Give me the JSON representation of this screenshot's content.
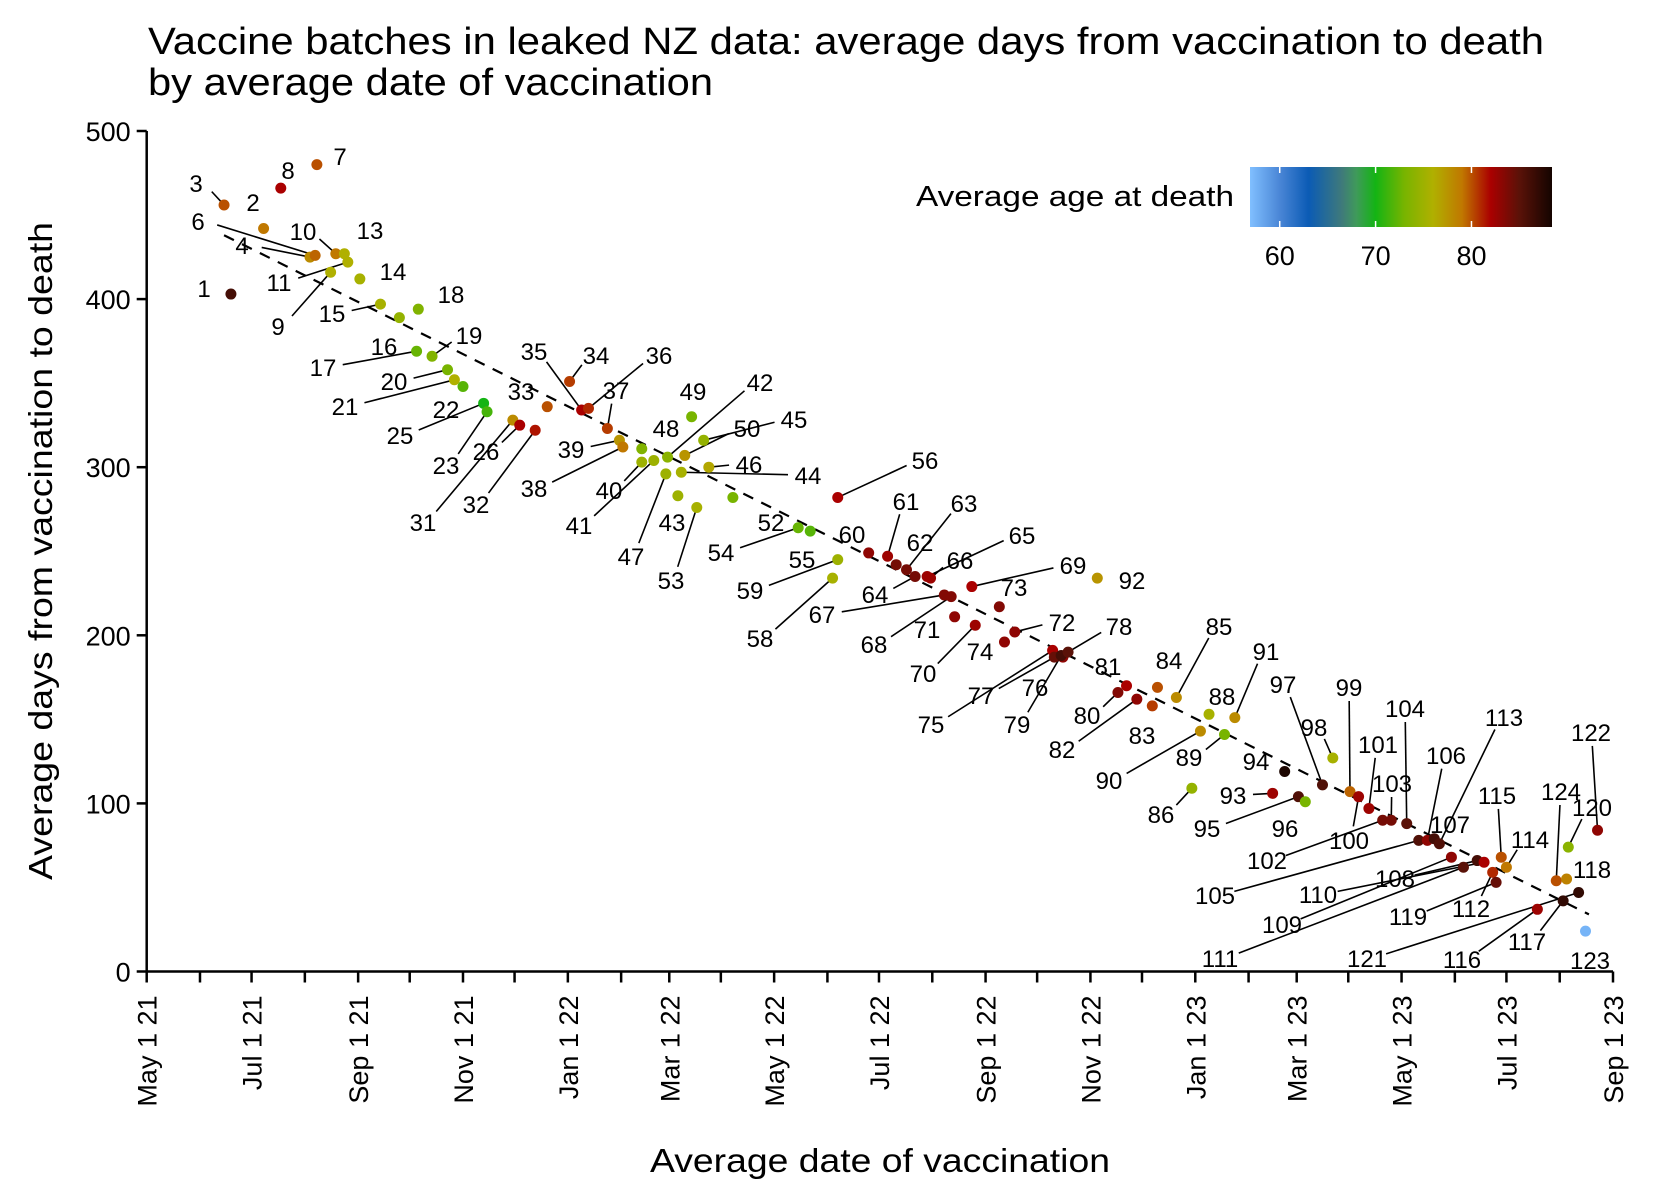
{
  "chart_data": {
    "type": "scatter",
    "title": "Vaccine batches in leaked NZ data: average days from vaccination to death",
    "subtitle": "by average date of vaccination",
    "xlabel": "Average date of vaccination",
    "ylabel": "Average days from vaccination to death",
    "x_units": "days since May 1 2021",
    "xlim": [
      0,
      853
    ],
    "ylim": [
      0,
      500
    ],
    "grid": false,
    "x_ticks": [
      {
        "day": 0,
        "label": "May 1 21"
      },
      {
        "day": 61,
        "label": "Jul 1 21"
      },
      {
        "day": 123,
        "label": "Sep 1 21"
      },
      {
        "day": 184,
        "label": "Nov 1 21"
      },
      {
        "day": 245,
        "label": "Jan 1 22"
      },
      {
        "day": 304,
        "label": "Mar 1 22"
      },
      {
        "day": 365,
        "label": "May 1 22"
      },
      {
        "day": 426,
        "label": "Jul 1 22"
      },
      {
        "day": 488,
        "label": "Sep 1 22"
      },
      {
        "day": 549,
        "label": "Nov 1 22"
      },
      {
        "day": 610,
        "label": "Jan 1 23"
      },
      {
        "day": 669,
        "label": "Mar 1 23"
      },
      {
        "day": 730,
        "label": "May 1 23"
      },
      {
        "day": 791,
        "label": "Jul 1 23"
      },
      {
        "day": 853,
        "label": "Sep 1 23"
      }
    ],
    "x_minor_ticks": [
      31,
      92,
      153,
      214,
      276,
      334,
      396,
      457,
      518,
      579,
      641,
      699,
      761,
      822
    ],
    "y_ticks": [
      {
        "value": 0,
        "label": "0"
      },
      {
        "value": 100,
        "label": "100"
      },
      {
        "value": 200,
        "label": "200"
      },
      {
        "value": 300,
        "label": "300"
      },
      {
        "value": 400,
        "label": "400"
      },
      {
        "value": 500,
        "label": "500"
      }
    ],
    "trend_line": {
      "style": "dashed",
      "from": [
        45,
        438
      ],
      "to": [
        839,
        34
      ]
    },
    "color_scale": {
      "title": "Average age at death",
      "range": [
        56.9,
        88.4
      ],
      "ticks": [
        {
          "value": 60,
          "label": "60"
        },
        {
          "value": 70,
          "label": "70"
        },
        {
          "value": 80,
          "label": "80"
        }
      ],
      "stops": [
        {
          "age": 56.9,
          "color": "#80bfff"
        },
        {
          "age": 60,
          "color": "#4a86d6"
        },
        {
          "age": 63,
          "color": "#0b5bb5"
        },
        {
          "age": 66.5,
          "color": "#3f7a7a"
        },
        {
          "age": 68,
          "color": "#3f9a5a"
        },
        {
          "age": 70,
          "color": "#14b414"
        },
        {
          "age": 73,
          "color": "#78b400"
        },
        {
          "age": 76,
          "color": "#b0b000"
        },
        {
          "age": 79,
          "color": "#c07800"
        },
        {
          "age": 82,
          "color": "#aa0000"
        },
        {
          "age": 85,
          "color": "#5a1208"
        },
        {
          "age": 88.4,
          "color": "#140400"
        }
      ]
    },
    "points": [
      {
        "label": "1",
        "x": 49,
        "y": 403,
        "age": 86
      },
      {
        "label": "2",
        "x": 68,
        "y": 442,
        "age": 79
      },
      {
        "label": "3",
        "x": 45,
        "y": 456,
        "age": 80
      },
      {
        "label": "4",
        "x": 95,
        "y": 425,
        "age": 78
      },
      {
        "label": "6",
        "x": 98,
        "y": 426,
        "age": 79.5
      },
      {
        "label": "7",
        "x": 99,
        "y": 480,
        "age": 80
      },
      {
        "label": "8",
        "x": 78,
        "y": 466,
        "age": 82
      },
      {
        "label": "9",
        "x": 107,
        "y": 416,
        "age": 76
      },
      {
        "label": "10",
        "x": 110,
        "y": 427,
        "age": 79
      },
      {
        "label": "11",
        "x": 117,
        "y": 422,
        "age": 76
      },
      {
        "label": "13",
        "x": 115,
        "y": 427,
        "age": 76
      },
      {
        "label": "14",
        "x": 124,
        "y": 412,
        "age": 75.5
      },
      {
        "label": "15",
        "x": 136,
        "y": 397,
        "age": 75.5
      },
      {
        "label": "16",
        "x": 147,
        "y": 389,
        "age": 74.5
      },
      {
        "label": "17",
        "x": 157,
        "y": 369,
        "age": 72.5
      },
      {
        "label": "18",
        "x": 158,
        "y": 394,
        "age": 73.5
      },
      {
        "label": "19",
        "x": 166,
        "y": 366,
        "age": 73.5
      },
      {
        "label": "20",
        "x": 175,
        "y": 358,
        "age": 73
      },
      {
        "label": "21",
        "x": 179,
        "y": 352,
        "age": 76
      },
      {
        "label": "22",
        "x": 184,
        "y": 348,
        "age": 72
      },
      {
        "label": "25",
        "x": 196,
        "y": 338,
        "age": 70
      },
      {
        "label": "23",
        "x": 198,
        "y": 333,
        "age": 71.5
      },
      {
        "label": "31",
        "x": 213,
        "y": 328,
        "age": 78
      },
      {
        "label": "26",
        "x": 217,
        "y": 325,
        "age": 82
      },
      {
        "label": "32",
        "x": 226,
        "y": 322,
        "age": 81.5
      },
      {
        "label": "33",
        "x": 233,
        "y": 336,
        "age": 80
      },
      {
        "label": "34",
        "x": 246,
        "y": 351,
        "age": 80.5
      },
      {
        "label": "35",
        "x": 253,
        "y": 334,
        "age": 82
      },
      {
        "label": "36",
        "x": 257,
        "y": 335,
        "age": 81
      },
      {
        "label": "37",
        "x": 268,
        "y": 323,
        "age": 80.5
      },
      {
        "label": "39",
        "x": 275,
        "y": 316,
        "age": 77.5
      },
      {
        "label": "38",
        "x": 277,
        "y": 312,
        "age": 79
      },
      {
        "label": "48",
        "x": 288,
        "y": 311,
        "age": 73.5
      },
      {
        "label": "40",
        "x": 288,
        "y": 303,
        "age": 75
      },
      {
        "label": "41",
        "x": 295,
        "y": 304,
        "age": 75
      },
      {
        "label": "42",
        "x": 303,
        "y": 306,
        "age": 74
      },
      {
        "label": "47",
        "x": 302,
        "y": 296,
        "age": 75
      },
      {
        "label": "43",
        "x": 309,
        "y": 283,
        "age": 75
      },
      {
        "label": "44",
        "x": 311,
        "y": 297,
        "age": 75.5
      },
      {
        "label": "50",
        "x": 313,
        "y": 307,
        "age": 77.5
      },
      {
        "label": "49",
        "x": 317,
        "y": 330,
        "age": 73
      },
      {
        "label": "45",
        "x": 324,
        "y": 316,
        "age": 74.5
      },
      {
        "label": "46",
        "x": 327,
        "y": 300,
        "age": 76.5
      },
      {
        "label": "53",
        "x": 320,
        "y": 276,
        "age": 75.5
      },
      {
        "label": "52",
        "x": 341,
        "y": 282,
        "age": 73
      },
      {
        "label": "54",
        "x": 379,
        "y": 264,
        "age": 72.5
      },
      {
        "label": "55",
        "x": 386,
        "y": 262,
        "age": 72
      },
      {
        "label": "56",
        "x": 402,
        "y": 282,
        "age": 82
      },
      {
        "label": "59",
        "x": 402,
        "y": 245,
        "age": 75
      },
      {
        "label": "58",
        "x": 399,
        "y": 234,
        "age": 75.5
      },
      {
        "label": "60",
        "x": 420,
        "y": 249,
        "age": 83
      },
      {
        "label": "61",
        "x": 431,
        "y": 247,
        "age": 82.5
      },
      {
        "label": "62",
        "x": 436,
        "y": 242,
        "age": 84
      },
      {
        "label": "63",
        "x": 442,
        "y": 239,
        "age": 84
      },
      {
        "label": "64",
        "x": 447,
        "y": 235,
        "age": 84
      },
      {
        "label": "65",
        "x": 454,
        "y": 235,
        "age": 82.5
      },
      {
        "label": "66",
        "x": 456,
        "y": 234,
        "age": 82.5
      },
      {
        "label": "67",
        "x": 464,
        "y": 224,
        "age": 83.5
      },
      {
        "label": "68",
        "x": 468,
        "y": 223,
        "age": 83.5
      },
      {
        "label": "71",
        "x": 470,
        "y": 211,
        "age": 83
      },
      {
        "label": "69",
        "x": 480,
        "y": 229,
        "age": 82
      },
      {
        "label": "70",
        "x": 482,
        "y": 206,
        "age": 82.5
      },
      {
        "label": "73",
        "x": 496,
        "y": 217,
        "age": 83.5
      },
      {
        "label": "72",
        "x": 505,
        "y": 202,
        "age": 83
      },
      {
        "label": "74",
        "x": 499,
        "y": 196,
        "age": 83
      },
      {
        "label": "75",
        "x": 527,
        "y": 191,
        "age": 82
      },
      {
        "label": "77",
        "x": 528,
        "y": 187,
        "age": 84.5
      },
      {
        "label": "76",
        "x": 533,
        "y": 187,
        "age": 83
      },
      {
        "label": "79",
        "x": 532,
        "y": 188,
        "age": 86
      },
      {
        "label": "78",
        "x": 536,
        "y": 190,
        "age": 85
      },
      {
        "label": "80",
        "x": 565,
        "y": 166,
        "age": 83.5
      },
      {
        "label": "81",
        "x": 570,
        "y": 170,
        "age": 82
      },
      {
        "label": "82",
        "x": 576,
        "y": 162,
        "age": 83
      },
      {
        "label": "83",
        "x": 585,
        "y": 158,
        "age": 80.5
      },
      {
        "label": "84",
        "x": 588,
        "y": 169,
        "age": 80
      },
      {
        "label": "85",
        "x": 599,
        "y": 163,
        "age": 78
      },
      {
        "label": "86",
        "x": 608,
        "y": 109,
        "age": 74.5
      },
      {
        "label": "88",
        "x": 618,
        "y": 153,
        "age": 75.5
      },
      {
        "label": "90",
        "x": 613,
        "y": 143,
        "age": 78
      },
      {
        "label": "89",
        "x": 627,
        "y": 141,
        "age": 73
      },
      {
        "label": "91",
        "x": 633,
        "y": 151,
        "age": 78
      },
      {
        "label": "92",
        "x": 553,
        "y": 234,
        "age": 77.5
      },
      {
        "label": "93",
        "x": 655,
        "y": 106,
        "age": 82.5
      },
      {
        "label": "94",
        "x": 662,
        "y": 119,
        "age": 88
      },
      {
        "label": "95",
        "x": 670,
        "y": 104,
        "age": 85.5
      },
      {
        "label": "96",
        "x": 674,
        "y": 101,
        "age": 73
      },
      {
        "label": "97",
        "x": 684,
        "y": 111,
        "age": 85.5
      },
      {
        "label": "98",
        "x": 690,
        "y": 127,
        "age": 75.5
      },
      {
        "label": "99",
        "x": 700,
        "y": 107,
        "age": 79.5
      },
      {
        "label": "100",
        "x": 705,
        "y": 104,
        "age": 82.5
      },
      {
        "label": "101",
        "x": 711,
        "y": 97,
        "age": 82.5
      },
      {
        "label": "102",
        "x": 719,
        "y": 90,
        "age": 84
      },
      {
        "label": "103",
        "x": 724,
        "y": 90,
        "age": 84
      },
      {
        "label": "104",
        "x": 733,
        "y": 88,
        "age": 85
      },
      {
        "label": "105",
        "x": 740,
        "y": 78,
        "age": 85.5
      },
      {
        "label": "106",
        "x": 745,
        "y": 78,
        "age": 83
      },
      {
        "label": "107",
        "x": 749,
        "y": 79,
        "age": 86
      },
      {
        "label": "113",
        "x": 752,
        "y": 76,
        "age": 85.5
      },
      {
        "label": "109",
        "x": 759,
        "y": 68,
        "age": 83
      },
      {
        "label": "111",
        "x": 766,
        "y": 62,
        "age": 85
      },
      {
        "label": "108",
        "x": 774,
        "y": 66,
        "age": 86
      },
      {
        "label": "110",
        "x": 778,
        "y": 65,
        "age": 82
      },
      {
        "label": "112",
        "x": 783,
        "y": 59,
        "age": 81
      },
      {
        "label": "119",
        "x": 785,
        "y": 53,
        "age": 84.5
      },
      {
        "label": "115",
        "x": 788,
        "y": 68,
        "age": 80
      },
      {
        "label": "114",
        "x": 791,
        "y": 62,
        "age": 79
      },
      {
        "label": "116",
        "x": 809,
        "y": 37,
        "age": 82.5
      },
      {
        "label": "124",
        "x": 820,
        "y": 54,
        "age": 80
      },
      {
        "label": "118",
        "x": 826,
        "y": 55,
        "age": 78.5
      },
      {
        "label": "117",
        "x": 824,
        "y": 42,
        "age": 87
      },
      {
        "label": "120",
        "x": 827,
        "y": 74,
        "age": 74
      },
      {
        "label": "121",
        "x": 833,
        "y": 47,
        "age": 87
      },
      {
        "label": "122",
        "x": 844,
        "y": 84,
        "age": 83
      },
      {
        "label": "123",
        "x": 837,
        "y": 24,
        "age": 57.5
      }
    ]
  }
}
